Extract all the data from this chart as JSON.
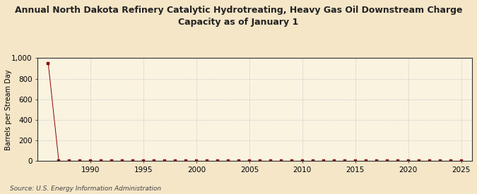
{
  "title": "Annual North Dakota Refinery Catalytic Hydrotreating, Heavy Gas Oil Downstream Charge\nCapacity as of January 1",
  "ylabel": "Barrels per Stream Day",
  "source": "Source: U.S. Energy Information Administration",
  "background_color": "#f5e6c8",
  "plot_background_color": "#faf3e0",
  "grid_color": "#cccccc",
  "line_color": "#8b0000",
  "marker_color": "#8b0000",
  "xlim": [
    1985,
    2026
  ],
  "ylim": [
    0,
    1000
  ],
  "xticks": [
    1990,
    1995,
    2000,
    2005,
    2010,
    2015,
    2020,
    2025
  ],
  "yticks": [
    0,
    200,
    400,
    600,
    800,
    1000
  ],
  "years": [
    1986,
    1987,
    1988,
    1989,
    1990,
    1991,
    1992,
    1993,
    1994,
    1995,
    1996,
    1997,
    1998,
    1999,
    2000,
    2001,
    2002,
    2003,
    2004,
    2005,
    2006,
    2007,
    2008,
    2009,
    2010,
    2011,
    2012,
    2013,
    2014,
    2015,
    2016,
    2017,
    2018,
    2019,
    2020,
    2021,
    2022,
    2023,
    2024,
    2025
  ],
  "values": [
    950,
    0,
    0,
    0,
    0,
    0,
    0,
    0,
    0,
    0,
    0,
    0,
    0,
    0,
    0,
    0,
    0,
    0,
    0,
    0,
    0,
    0,
    0,
    0,
    0,
    0,
    0,
    0,
    0,
    0,
    0,
    0,
    0,
    0,
    0,
    0,
    0,
    0,
    0,
    0
  ],
  "title_fontsize": 9,
  "tick_fontsize": 7.5,
  "ylabel_fontsize": 7,
  "source_fontsize": 6.5
}
